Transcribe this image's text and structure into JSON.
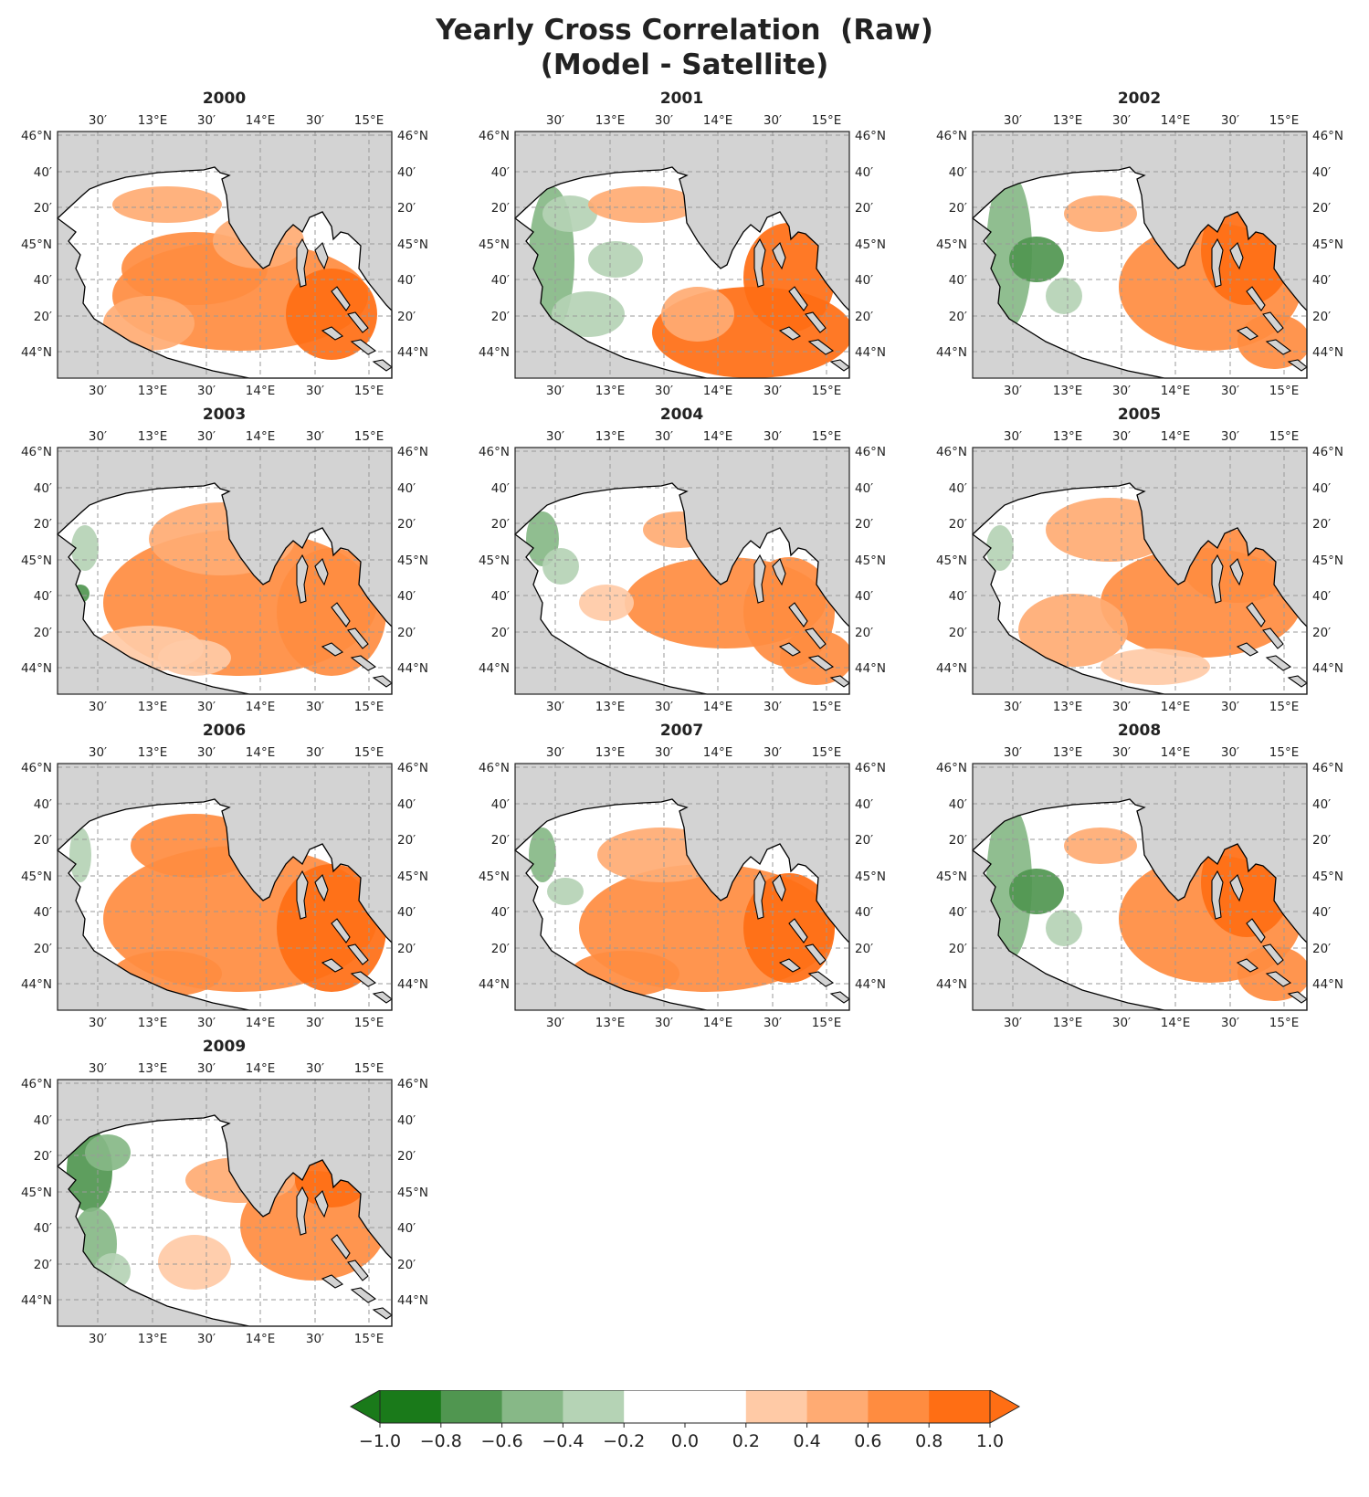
{
  "title_line1": "Yearly Cross Correlation  (Raw)",
  "title_line2": "(Model - Satellite)",
  "lon_labels": [
    "30′",
    "13°E",
    "30′",
    "14°E",
    "30′",
    "15°E"
  ],
  "lat_labels": [
    "46°N",
    "40′",
    "20′",
    "45°N",
    "40′",
    "20′",
    "44°N"
  ],
  "panels": [
    {
      "year": "2000",
      "pattern": "orange-strong"
    },
    {
      "year": "2001",
      "pattern": "green-west-orange-southeast"
    },
    {
      "year": "2002",
      "pattern": "green-west-orange-east"
    },
    {
      "year": "2003",
      "pattern": "orange-light-green-coast"
    },
    {
      "year": "2004",
      "pattern": "green-northwest-orange-center"
    },
    {
      "year": "2005",
      "pattern": "orange-white-center"
    },
    {
      "year": "2006",
      "pattern": "orange-strong-green-coast"
    },
    {
      "year": "2007",
      "pattern": "orange-green-coast"
    },
    {
      "year": "2008",
      "pattern": "green-west-orange-east"
    },
    {
      "year": "2009",
      "pattern": "green-northwest-orange-east"
    }
  ],
  "colorbar": {
    "ticks": [
      "−1.0",
      "−0.8",
      "−0.6",
      "−0.4",
      "−0.2",
      "0.0",
      "0.2",
      "0.4",
      "0.6",
      "0.8",
      "1.0"
    ],
    "colors": [
      "#1a7a1a",
      "#509650",
      "#87b887",
      "#b5d3b5",
      "#ffffff",
      "#ffffff",
      "#ffcaa6",
      "#ffab73",
      "#ff8c40",
      "#ff6e14"
    ],
    "extend": "both"
  },
  "colors": {
    "land": "#d3d3d3",
    "grid": "#999999"
  }
}
